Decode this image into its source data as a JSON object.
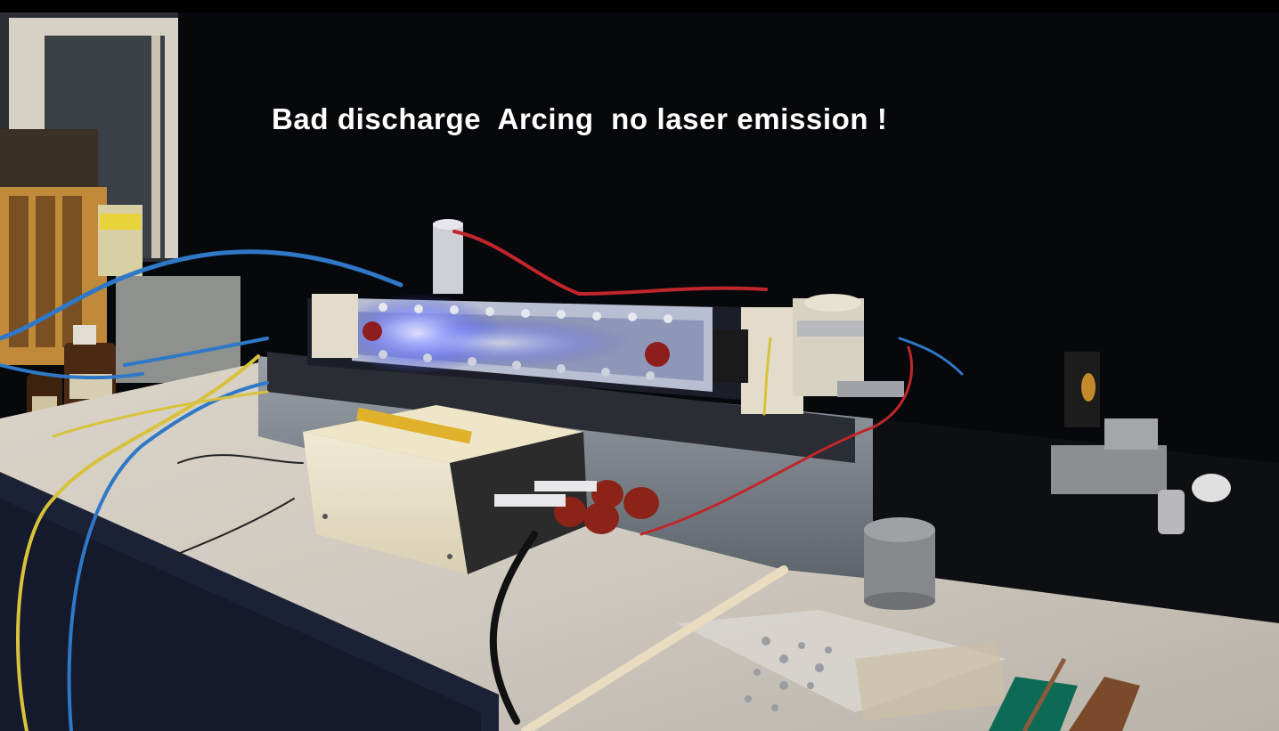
{
  "caption": {
    "text": "Bad discharge  Arcing  no laser emission !",
    "color": "#ffffff"
  },
  "photo": {
    "subject": "nitrogen laser discharge channel with high-voltage power supply on a bench",
    "discharge_glow_color": "#6f7cff",
    "cable_colors": {
      "high_voltage": "#c0262b",
      "blue_gas_line": "#2f78c7",
      "yellow_lead": "#d8c23b",
      "black_cable": "#111111"
    }
  }
}
